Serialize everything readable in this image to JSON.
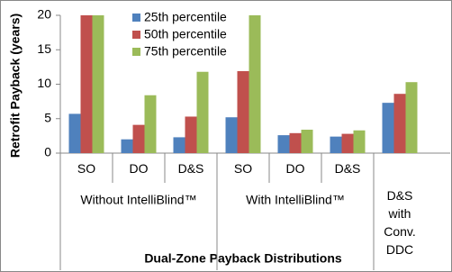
{
  "chart_data": {
    "type": "bar",
    "x_label": "Dual-Zone Payback Distributions",
    "y_label": "Retrofit Payback (years)",
    "categories": [
      "SO",
      "DO",
      "D&S",
      "SO",
      "DO",
      "D&S",
      "D&S with Conv. DDC"
    ],
    "category_groups": [
      "Without IntelliBlind™",
      "With IntelliBlind™"
    ],
    "series": [
      {
        "name": "25th percentile",
        "color": "#4f81bd",
        "values": [
          5.7,
          2.0,
          2.3,
          5.2,
          2.6,
          2.4,
          7.3
        ]
      },
      {
        "name": "50th percentile",
        "color": "#c0504d",
        "values": [
          20,
          4.1,
          5.3,
          11.9,
          2.9,
          2.8,
          8.6
        ]
      },
      {
        "name": "75th percentile",
        "color": "#9bbb59",
        "values": [
          20,
          8.4,
          11.8,
          20,
          3.4,
          3.3,
          10.3
        ]
      }
    ],
    "ylim": [
      0,
      20
    ],
    "yticks": [
      0,
      5,
      10,
      15,
      20
    ],
    "legend": "top"
  }
}
